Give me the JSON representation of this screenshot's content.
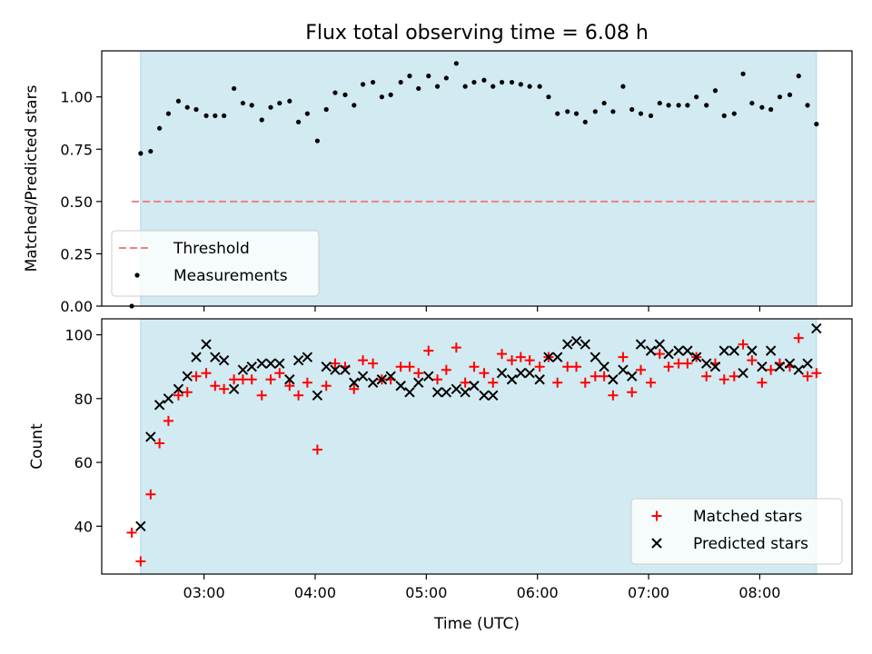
{
  "title": "Flux total observing time = 6.08 h",
  "colors": {
    "observing_span": "#add8e6",
    "threshold": "#f08080",
    "measurement": "#000000",
    "matched": "#ff0000",
    "predicted": "#000000"
  },
  "x_axis": {
    "label": "Time (UTC)",
    "min_hours": 2.08,
    "max_hours": 8.83,
    "ticks": [
      {
        "value": 3.0,
        "label": "03:00"
      },
      {
        "value": 4.0,
        "label": "04:00"
      },
      {
        "value": 5.0,
        "label": "05:00"
      },
      {
        "value": 6.0,
        "label": "06:00"
      },
      {
        "value": 7.0,
        "label": "07:00"
      },
      {
        "value": 8.0,
        "label": "08:00"
      }
    ]
  },
  "chart_data": [
    {
      "type": "scatter",
      "name": "ratio",
      "ylabel": "Matched/Predicted stars",
      "ylim": [
        0.0,
        1.22
      ],
      "yticks": [
        {
          "value": 0.0,
          "label": "0.00"
        },
        {
          "value": 0.25,
          "label": "0.25"
        },
        {
          "value": 0.5,
          "label": "0.50"
        },
        {
          "value": 0.75,
          "label": "0.75"
        },
        {
          "value": 1.0,
          "label": "1.00"
        }
      ],
      "observing_span": [
        2.43,
        8.51
      ],
      "threshold": {
        "label": "Threshold",
        "value": 0.5,
        "x_range": [
          2.35,
          8.51
        ]
      },
      "legend": {
        "position": "lower-left",
        "entries": [
          {
            "label": "Threshold",
            "marker": "dash"
          },
          {
            "label": "Measurements",
            "marker": "dot"
          }
        ]
      },
      "series": [
        {
          "name": "Measurements",
          "x": [
            2.35,
            2.43,
            2.52,
            2.6,
            2.68,
            2.77,
            2.85,
            2.93,
            3.02,
            3.1,
            3.18,
            3.27,
            3.35,
            3.43,
            3.52,
            3.6,
            3.68,
            3.77,
            3.85,
            3.93,
            4.02,
            4.1,
            4.18,
            4.27,
            4.35,
            4.43,
            4.52,
            4.6,
            4.68,
            4.77,
            4.85,
            4.93,
            5.02,
            5.1,
            5.18,
            5.27,
            5.35,
            5.43,
            5.52,
            5.6,
            5.68,
            5.77,
            5.85,
            5.93,
            6.02,
            6.1,
            6.18,
            6.27,
            6.35,
            6.43,
            6.52,
            6.6,
            6.68,
            6.77,
            6.85,
            6.93,
            7.02,
            7.1,
            7.18,
            7.27,
            7.35,
            7.43,
            7.52,
            7.6,
            7.68,
            7.77,
            7.85,
            7.93,
            8.02,
            8.1,
            8.18,
            8.27,
            8.35,
            8.43,
            8.51
          ],
          "y": [
            0.0,
            0.73,
            0.74,
            0.85,
            0.92,
            0.98,
            0.95,
            0.94,
            0.91,
            0.91,
            0.91,
            1.04,
            0.97,
            0.96,
            0.89,
            0.95,
            0.97,
            0.98,
            0.88,
            0.92,
            0.79,
            0.94,
            1.02,
            1.01,
            0.96,
            1.06,
            1.07,
            1.0,
            1.01,
            1.07,
            1.1,
            1.04,
            1.1,
            1.05,
            1.09,
            1.16,
            1.05,
            1.07,
            1.08,
            1.05,
            1.07,
            1.07,
            1.06,
            1.05,
            1.05,
            1.0,
            0.92,
            0.93,
            0.92,
            0.88,
            0.93,
            0.97,
            0.93,
            1.05,
            0.94,
            0.92,
            0.91,
            0.97,
            0.96,
            0.96,
            0.96,
            1.0,
            0.96,
            1.03,
            0.91,
            0.92,
            1.11,
            0.97,
            0.95,
            0.94,
            1.0,
            1.01,
            1.1,
            0.96,
            0.87
          ]
        }
      ]
    },
    {
      "type": "scatter",
      "name": "counts",
      "ylabel": "Count",
      "ylim": [
        25,
        105
      ],
      "yticks": [
        {
          "value": 40,
          "label": "40"
        },
        {
          "value": 60,
          "label": "60"
        },
        {
          "value": 80,
          "label": "80"
        },
        {
          "value": 100,
          "label": "100"
        }
      ],
      "observing_span": [
        2.43,
        8.51
      ],
      "legend": {
        "position": "lower-right",
        "entries": [
          {
            "label": "Matched stars",
            "marker": "plus"
          },
          {
            "label": "Predicted stars",
            "marker": "x"
          }
        ]
      },
      "series": [
        {
          "name": "Matched stars",
          "x": [
            2.35,
            2.43,
            2.52,
            2.6,
            2.68,
            2.77,
            2.85,
            2.93,
            3.02,
            3.1,
            3.18,
            3.27,
            3.35,
            3.43,
            3.52,
            3.6,
            3.68,
            3.77,
            3.85,
            3.93,
            4.02,
            4.1,
            4.18,
            4.27,
            4.35,
            4.43,
            4.52,
            4.6,
            4.68,
            4.77,
            4.85,
            4.93,
            5.02,
            5.1,
            5.18,
            5.27,
            5.35,
            5.43,
            5.52,
            5.6,
            5.68,
            5.77,
            5.85,
            5.93,
            6.02,
            6.1,
            6.18,
            6.27,
            6.35,
            6.43,
            6.52,
            6.6,
            6.68,
            6.77,
            6.85,
            6.93,
            7.02,
            7.1,
            7.18,
            7.27,
            7.35,
            7.43,
            7.52,
            7.6,
            7.68,
            7.77,
            7.85,
            7.93,
            8.02,
            8.1,
            8.18,
            8.27,
            8.35,
            8.43,
            8.51
          ],
          "y": [
            38,
            29,
            50,
            66,
            73,
            81,
            82,
            87,
            88,
            84,
            83,
            86,
            86,
            86,
            81,
            86,
            88,
            84,
            81,
            85,
            64,
            84,
            91,
            90,
            83,
            92,
            91,
            86,
            86,
            90,
            90,
            88,
            95,
            86,
            89,
            96,
            85,
            90,
            88,
            85,
            94,
            92,
            93,
            92,
            90,
            93,
            85,
            90,
            90,
            85,
            87,
            87,
            81,
            93,
            82,
            89,
            85,
            94,
            90,
            91,
            91,
            93,
            87,
            91,
            86,
            87,
            97,
            92,
            85,
            89,
            91,
            90,
            99,
            87,
            88
          ]
        },
        {
          "name": "Predicted stars",
          "x": [
            2.43,
            2.52,
            2.6,
            2.68,
            2.77,
            2.85,
            2.93,
            3.02,
            3.1,
            3.18,
            3.27,
            3.35,
            3.43,
            3.52,
            3.6,
            3.68,
            3.77,
            3.85,
            3.93,
            4.02,
            4.1,
            4.18,
            4.27,
            4.35,
            4.43,
            4.52,
            4.6,
            4.68,
            4.77,
            4.85,
            4.93,
            5.02,
            5.1,
            5.18,
            5.27,
            5.35,
            5.43,
            5.52,
            5.6,
            5.68,
            5.77,
            5.85,
            5.93,
            6.02,
            6.1,
            6.18,
            6.27,
            6.35,
            6.43,
            6.52,
            6.6,
            6.68,
            6.77,
            6.85,
            6.93,
            7.02,
            7.1,
            7.18,
            7.27,
            7.35,
            7.43,
            7.52,
            7.6,
            7.68,
            7.77,
            7.85,
            7.93,
            8.02,
            8.1,
            8.18,
            8.27,
            8.35,
            8.43,
            8.51
          ],
          "y": [
            40,
            68,
            78,
            80,
            83,
            87,
            93,
            97,
            93,
            92,
            83,
            89,
            90,
            91,
            91,
            91,
            86,
            92,
            93,
            81,
            90,
            89,
            89,
            85,
            87,
            85,
            86,
            87,
            84,
            82,
            85,
            87,
            82,
            82,
            83,
            82,
            84,
            81,
            81,
            88,
            86,
            88,
            88,
            86,
            93,
            93,
            97,
            98,
            97,
            93,
            90,
            86,
            89,
            87,
            97,
            95,
            97,
            94,
            95,
            95,
            93,
            91,
            90,
            95,
            95,
            88,
            95,
            90,
            95,
            90,
            91,
            89,
            91,
            102
          ]
        }
      ]
    }
  ]
}
